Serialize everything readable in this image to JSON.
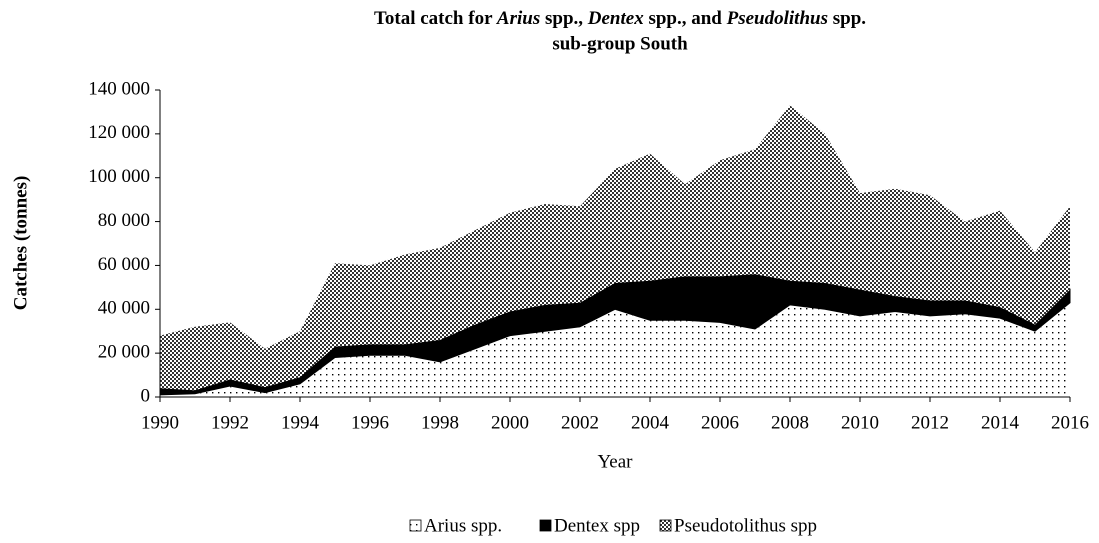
{
  "chart_data": {
    "type": "stacked_area",
    "title_parts": [
      {
        "text": "Total catch for ",
        "italic": false
      },
      {
        "text": "Arius",
        "italic": true
      },
      {
        "text": " spp., ",
        "italic": false
      },
      {
        "text": "Dentex",
        "italic": true
      },
      {
        "text": " spp., and ",
        "italic": false
      },
      {
        "text": "Pseudolithus",
        "italic": true
      },
      {
        "text": " spp.",
        "italic": false
      }
    ],
    "subtitle": "sub-group South",
    "x_label": "Year",
    "y_label": "Catches (tonnes)",
    "x": [
      1990,
      1991,
      1992,
      1993,
      1994,
      1995,
      1996,
      1997,
      1998,
      1999,
      2000,
      2001,
      2002,
      2003,
      2004,
      2005,
      2006,
      2007,
      2008,
      2009,
      2010,
      2011,
      2012,
      2013,
      2014,
      2015,
      2016
    ],
    "series": [
      {
        "name": "Arius spp.",
        "color": "#000000",
        "pattern": "dots",
        "values": [
          1000,
          1500,
          5000,
          2000,
          6000,
          18000,
          19000,
          19000,
          16000,
          22000,
          28000,
          30000,
          32000,
          40000,
          35000,
          35000,
          34000,
          31000,
          42000,
          40000,
          37000,
          39000,
          37000,
          38000,
          36000,
          30000,
          43000
        ]
      },
      {
        "name": "Dentex spp",
        "color": "#000000",
        "pattern": "solid",
        "values": [
          3000,
          1500,
          3000,
          2500,
          3000,
          5000,
          5000,
          5000,
          10000,
          11000,
          11000,
          12000,
          11000,
          12000,
          18000,
          20000,
          21000,
          25000,
          11000,
          12000,
          12000,
          7000,
          7000,
          6000,
          5000,
          3000,
          6000
        ]
      },
      {
        "name": "Pseudotolithus spp",
        "color": "#000000",
        "pattern": "checker",
        "values": [
          24000,
          29000,
          26000,
          17500,
          21000,
          38000,
          36000,
          41000,
          42000,
          43000,
          45000,
          46000,
          44000,
          52000,
          58000,
          42000,
          53000,
          57000,
          80000,
          68000,
          44000,
          49000,
          48000,
          36000,
          44000,
          33000,
          38000
        ]
      }
    ],
    "xlim": [
      1990,
      2016
    ],
    "xticks": [
      1990,
      1992,
      1994,
      1996,
      1998,
      2000,
      2002,
      2004,
      2006,
      2008,
      2010,
      2012,
      2014,
      2016
    ],
    "ylim": [
      0,
      140000
    ],
    "yticks": [
      0,
      {
        "value": 20000,
        "label": "20 000"
      },
      {
        "value": 40000,
        "label": "40 000"
      },
      {
        "value": 60000,
        "label": "60 000"
      },
      {
        "value": 80000,
        "label": "80 000"
      },
      {
        "value": 100000,
        "label": "100 000"
      },
      {
        "value": 120000,
        "label": "120 000"
      },
      {
        "value": 140000,
        "label": "140 000"
      }
    ],
    "grid": false,
    "legend": "bottom"
  }
}
